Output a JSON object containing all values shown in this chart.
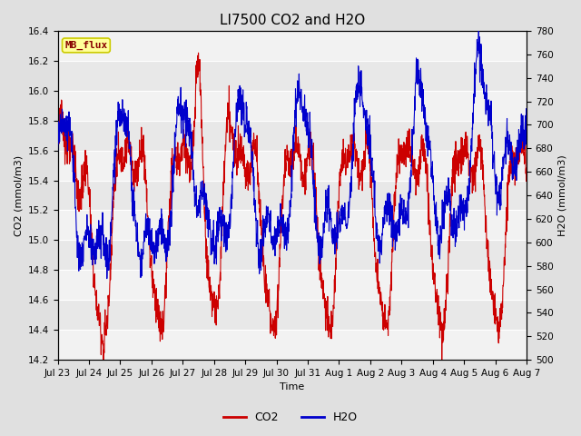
{
  "title": "LI7500 CO2 and H2O",
  "xlabel": "Time",
  "ylabel_left": "CO2 (mmol/m3)",
  "ylabel_right": "H2O (mmol/m3)",
  "co2_color": "#cc0000",
  "h2o_color": "#0000cc",
  "line_width": 0.8,
  "ylim_left": [
    14.2,
    16.4
  ],
  "ylim_right": [
    500,
    780
  ],
  "yticks_left": [
    14.2,
    14.4,
    14.6,
    14.8,
    15.0,
    15.2,
    15.4,
    15.6,
    15.8,
    16.0,
    16.2,
    16.4
  ],
  "yticks_right": [
    500,
    520,
    540,
    560,
    580,
    600,
    620,
    640,
    660,
    680,
    700,
    720,
    740,
    760,
    780
  ],
  "xtick_labels": [
    "Jul 23",
    "Jul 24",
    "Jul 25",
    "Jul 26",
    "Jul 27",
    "Jul 28",
    "Jul 29",
    "Jul 30",
    "Jul 31",
    "Aug 1",
    "Aug 2",
    "Aug 3",
    "Aug 4",
    "Aug 5",
    "Aug 6",
    "Aug 7"
  ],
  "bg_color": "#e0e0e0",
  "plot_bg_light": "#f2f2f2",
  "plot_bg_dark": "#e8e8e8",
  "grid_color": "#ffffff",
  "annotation_text": "MB_flux",
  "annotation_bg": "#ffff99",
  "annotation_border": "#cccc00",
  "title_fontsize": 11,
  "label_fontsize": 8,
  "tick_fontsize": 7.5,
  "legend_fontsize": 9,
  "num_points": 2000
}
